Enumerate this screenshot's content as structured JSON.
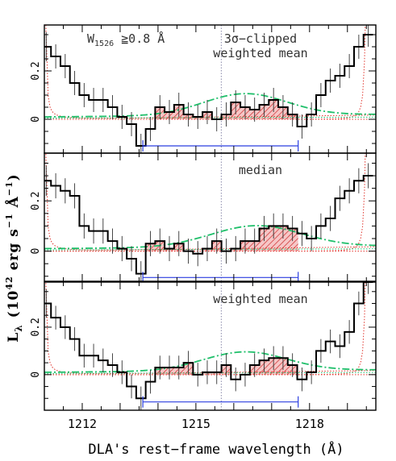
{
  "chart_data": {
    "type": "line",
    "xlabel": "DLA's rest−frame wavelength (Å)",
    "ylabel": "Lλ (10⁴² erg s⁻¹ Å⁻¹)",
    "ylabel_main": "L",
    "ylabel_sub": "λ",
    "ylabel_rest": "(10",
    "ylabel_exp1": "42",
    "ylabel_rest2": " erg s",
    "ylabel_exp2": "−1",
    "ylabel_rest3": " Å",
    "ylabel_exp3": "−1",
    "ylabel_close": ")",
    "xlim": [
      1211.0,
      1219.75
    ],
    "x_ticks": [
      1212,
      1215,
      1218
    ],
    "x_tick_labels": [
      "1212",
      "1215",
      "1218"
    ],
    "lya_line": 1215.67,
    "integration_range": [
      1213.6,
      1217.7
    ],
    "panels": [
      {
        "label": "3σ−clipped",
        "label2": "weighted mean",
        "note": "W",
        "note_sub": "1526",
        "note_rest": " ≧0.8 Å",
        "ylim": [
          -0.14,
          0.39
        ],
        "y_ticks": [
          0,
          0.2
        ],
        "y_tick_labels": [
          "0",
          "0.2"
        ],
        "range_y": -0.11,
        "series": [
          {
            "name": "stacked spectrum",
            "x": [
              1211.05,
              1211.3,
              1211.55,
              1211.8,
              1212.05,
              1212.3,
              1212.55,
              1212.8,
              1213.05,
              1213.3,
              1213.55,
              1213.8,
              1214.05,
              1214.3,
              1214.55,
              1214.8,
              1215.05,
              1215.3,
              1215.55,
              1215.8,
              1216.05,
              1216.3,
              1216.55,
              1216.8,
              1217.05,
              1217.3,
              1217.55,
              1217.8,
              1218.05,
              1218.3,
              1218.55,
              1218.8,
              1219.05,
              1219.3,
              1219.55
            ],
            "y": [
              0.3,
              0.26,
              0.22,
              0.15,
              0.1,
              0.08,
              0.08,
              0.05,
              0.01,
              -0.02,
              -0.11,
              -0.04,
              0.05,
              0.03,
              0.06,
              0.02,
              0.01,
              0.03,
              0.0,
              0.02,
              0.07,
              0.05,
              0.04,
              0.06,
              0.08,
              0.05,
              0.02,
              -0.03,
              0.02,
              0.1,
              0.16,
              0.18,
              0.22,
              0.3,
              0.35
            ],
            "err": [
              0.06,
              0.05,
              0.05,
              0.05,
              0.05,
              0.05,
              0.05,
              0.05,
              0.05,
              0.05,
              0.05,
              0.05,
              0.05,
              0.05,
              0.05,
              0.05,
              0.05,
              0.05,
              0.05,
              0.05,
              0.05,
              0.05,
              0.05,
              0.05,
              0.05,
              0.05,
              0.05,
              0.05,
              0.05,
              0.05,
              0.05,
              0.05,
              0.05,
              0.05,
              0.05
            ]
          },
          {
            "name": "model",
            "gauss_center": 1216.3,
            "gauss_amp": 0.09,
            "gauss_sigma": 1.1,
            "base_left": 0.01,
            "base_right": 0.02
          }
        ]
      },
      {
        "label": "median",
        "label2": "",
        "ylim": [
          -0.12,
          0.39
        ],
        "y_ticks": [
          0,
          0.2
        ],
        "y_tick_labels": [
          "0",
          "0.2"
        ],
        "range_y": -0.105,
        "series": [
          {
            "name": "stacked spectrum",
            "x": [
              1211.05,
              1211.3,
              1211.55,
              1211.8,
              1212.05,
              1212.3,
              1212.55,
              1212.8,
              1213.05,
              1213.3,
              1213.55,
              1213.8,
              1214.05,
              1214.3,
              1214.55,
              1214.8,
              1215.05,
              1215.3,
              1215.55,
              1215.8,
              1216.05,
              1216.3,
              1216.55,
              1216.8,
              1217.05,
              1217.3,
              1217.55,
              1217.8,
              1218.05,
              1218.3,
              1218.55,
              1218.8,
              1219.05,
              1219.3,
              1219.55
            ],
            "y": [
              0.28,
              0.26,
              0.24,
              0.22,
              0.1,
              0.08,
              0.08,
              0.04,
              0.01,
              -0.03,
              -0.09,
              0.03,
              0.04,
              0.01,
              0.03,
              0.0,
              -0.01,
              0.01,
              0.04,
              0.0,
              0.01,
              0.04,
              0.04,
              0.09,
              0.1,
              0.1,
              0.09,
              0.07,
              0.05,
              0.1,
              0.13,
              0.21,
              0.24,
              0.28,
              0.3
            ],
            "err": [
              0.06,
              0.05,
              0.05,
              0.05,
              0.05,
              0.05,
              0.05,
              0.05,
              0.05,
              0.05,
              0.05,
              0.05,
              0.05,
              0.05,
              0.05,
              0.05,
              0.05,
              0.05,
              0.05,
              0.05,
              0.05,
              0.05,
              0.05,
              0.05,
              0.05,
              0.05,
              0.05,
              0.05,
              0.05,
              0.05,
              0.05,
              0.05,
              0.05,
              0.05,
              0.05
            ]
          },
          {
            "name": "model",
            "gauss_center": 1216.6,
            "gauss_amp": 0.085,
            "gauss_sigma": 1.2,
            "base_left": 0.01,
            "base_right": 0.02
          }
        ]
      },
      {
        "label": "weighted mean",
        "label2": "",
        "ylim": [
          -0.15,
          0.39
        ],
        "y_ticks": [
          0,
          0.2
        ],
        "y_tick_labels": [
          "0",
          "0.2"
        ],
        "range_y": -0.115,
        "series": [
          {
            "name": "stacked spectrum",
            "x": [
              1211.05,
              1211.3,
              1211.55,
              1211.8,
              1212.05,
              1212.3,
              1212.55,
              1212.8,
              1213.05,
              1213.3,
              1213.55,
              1213.8,
              1214.05,
              1214.3,
              1214.55,
              1214.8,
              1215.05,
              1215.3,
              1215.55,
              1215.8,
              1216.05,
              1216.3,
              1216.55,
              1216.8,
              1217.05,
              1217.3,
              1217.55,
              1217.8,
              1218.05,
              1218.3,
              1218.55,
              1218.8,
              1219.05,
              1219.3,
              1219.55
            ],
            "y": [
              0.3,
              0.24,
              0.2,
              0.15,
              0.08,
              0.08,
              0.06,
              0.04,
              0.01,
              -0.05,
              -0.1,
              -0.03,
              0.03,
              0.03,
              0.03,
              0.05,
              0.0,
              0.01,
              0.01,
              0.04,
              -0.02,
              0.0,
              0.04,
              0.06,
              0.07,
              0.07,
              0.04,
              -0.02,
              0.01,
              0.1,
              0.14,
              0.12,
              0.18,
              0.3,
              0.39
            ],
            "err": [
              0.06,
              0.05,
              0.05,
              0.05,
              0.05,
              0.05,
              0.05,
              0.05,
              0.05,
              0.05,
              0.05,
              0.05,
              0.05,
              0.05,
              0.05,
              0.05,
              0.05,
              0.05,
              0.05,
              0.05,
              0.05,
              0.05,
              0.05,
              0.05,
              0.05,
              0.05,
              0.05,
              0.05,
              0.05,
              0.05,
              0.05,
              0.05,
              0.05,
              0.05,
              0.05
            ]
          },
          {
            "name": "model",
            "gauss_center": 1216.3,
            "gauss_amp": 0.08,
            "gauss_sigma": 1.1,
            "base_left": 0.01,
            "base_right": 0.02
          }
        ]
      }
    ],
    "colors": {
      "spectrum": "#000000",
      "fill": "#d23c3c",
      "model": "#1fbf6a",
      "range": "#2b3ee0",
      "damping": "#e0332b",
      "lya": "#8888aa"
    }
  }
}
